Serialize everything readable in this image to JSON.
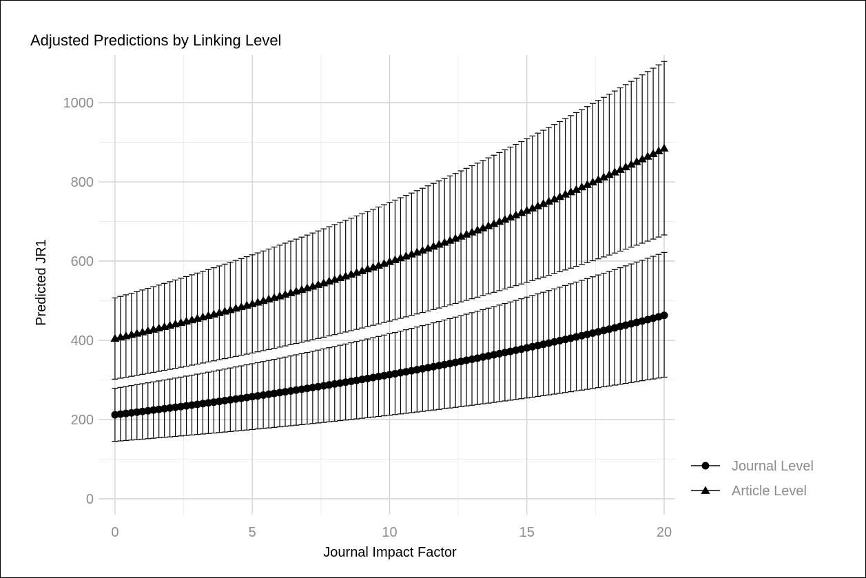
{
  "chart_data": {
    "type": "line",
    "title": "Adjusted Predictions by Linking Level",
    "xlabel": "Journal Impact Factor",
    "ylabel": "Predicted JR1",
    "xlim": [
      -0.6,
      20.4
    ],
    "ylim": [
      -40,
      1120
    ],
    "xticks": [
      0,
      5,
      10,
      15,
      20
    ],
    "yticks": [
      0,
      200,
      400,
      600,
      800,
      1000
    ],
    "grid": true,
    "legend_position": "right",
    "x_step": 0.2,
    "series": [
      {
        "name": "Journal Level",
        "marker": "circle",
        "color": "#000000",
        "pred_start": 212,
        "pred_end": 463,
        "ci_low_start": 145,
        "ci_low_end": 307,
        "ci_high_start": 279,
        "ci_high_end": 622
      },
      {
        "name": "Article Level",
        "marker": "triangle",
        "color": "#000000",
        "pred_start": 405,
        "pred_end": 885,
        "ci_low_start": 302,
        "ci_low_end": 666,
        "ci_high_start": 507,
        "ci_high_end": 1104
      }
    ]
  }
}
